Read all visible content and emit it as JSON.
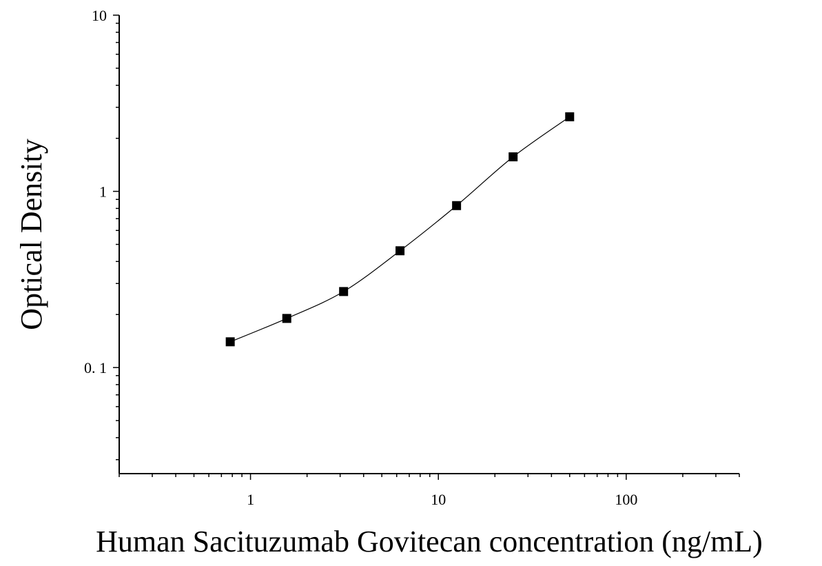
{
  "chart_data": {
    "type": "scatter",
    "xlabel": "Human Sacituzumab Govitecan concentration (ng/mL)",
    "ylabel": "Optical Density",
    "x_scale": "log",
    "y_scale": "log",
    "xlim": [
      0.2,
      400
    ],
    "ylim": [
      0.025,
      10
    ],
    "x_ticks": [
      1,
      10,
      100
    ],
    "x_tick_labels": [
      "1",
      "10",
      "100"
    ],
    "y_ticks": [
      0.1,
      1,
      10
    ],
    "y_tick_labels": [
      "0. 1",
      "1",
      "10"
    ],
    "grid": false,
    "legend": "none",
    "points": [
      {
        "x": 0.78,
        "y": 0.14
      },
      {
        "x": 1.56,
        "y": 0.19
      },
      {
        "x": 3.13,
        "y": 0.27
      },
      {
        "x": 6.25,
        "y": 0.46
      },
      {
        "x": 12.5,
        "y": 0.83
      },
      {
        "x": 25,
        "y": 1.57
      },
      {
        "x": 50,
        "y": 2.65
      }
    ],
    "fit_curve": true,
    "colors": {
      "marker": "#000000",
      "curve": "#000000",
      "axis": "#000000"
    }
  }
}
